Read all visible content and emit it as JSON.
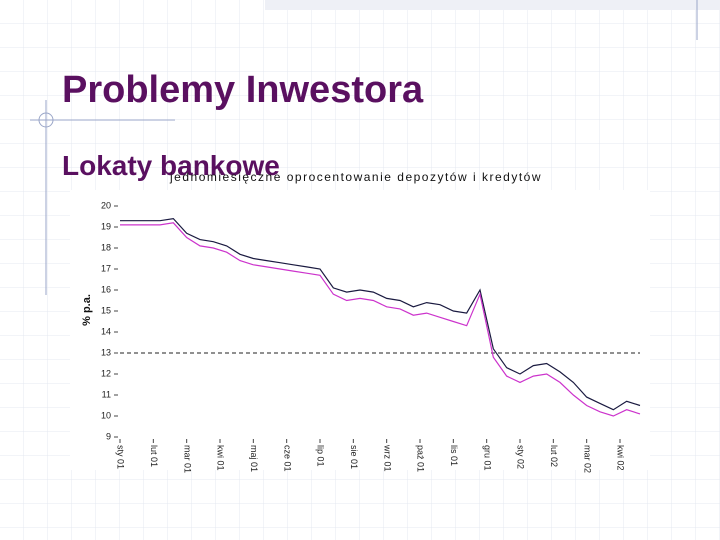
{
  "slide": {
    "title": "Problemy Inwestora",
    "subtitle": "Lokaty bankowe"
  },
  "chart_data": {
    "type": "line",
    "title": "jednomiesięczne oprocentowanie depozytów i kredytów",
    "y_label": "% p.a.",
    "x": [
      0,
      1,
      2,
      3,
      4,
      5,
      6,
      7,
      8,
      9,
      10,
      11,
      12,
      13,
      14,
      15,
      16,
      17,
      18,
      19,
      20,
      21,
      22,
      23,
      24,
      25,
      26,
      27,
      28,
      29,
      30,
      31,
      32,
      33,
      34,
      35,
      36,
      37,
      38,
      39
    ],
    "series": [
      {
        "color": "#1a1a40",
        "values": [
          19.3,
          19.3,
          19.3,
          19.3,
          19.4,
          18.7,
          18.4,
          18.3,
          18.1,
          17.7,
          17.5,
          17.4,
          17.3,
          17.2,
          17.1,
          17.0,
          16.1,
          15.9,
          16.0,
          15.9,
          15.6,
          15.5,
          15.2,
          15.4,
          15.3,
          15.0,
          14.9,
          16.0,
          13.2,
          12.3,
          12.0,
          12.4,
          12.5,
          12.1,
          11.6,
          10.9,
          10.6,
          10.3,
          10.7,
          10.5
        ]
      },
      {
        "color": "#cc33cc",
        "values": [
          19.1,
          19.1,
          19.1,
          19.1,
          19.2,
          18.5,
          18.1,
          18.0,
          17.8,
          17.4,
          17.2,
          17.1,
          17.0,
          16.9,
          16.8,
          16.7,
          15.8,
          15.5,
          15.6,
          15.5,
          15.2,
          15.1,
          14.8,
          14.9,
          14.7,
          14.5,
          14.3,
          15.8,
          12.8,
          11.9,
          11.6,
          11.9,
          12.0,
          11.6,
          11.0,
          10.5,
          10.2,
          10.0,
          10.3,
          10.1
        ]
      }
    ],
    "reference_line": 13,
    "xlim": [
      0,
      39
    ],
    "xticks": [
      {
        "value": 0,
        "label": "sty 01"
      },
      {
        "value": 2.5,
        "label": "lut 01"
      },
      {
        "value": 5,
        "label": "mar 01"
      },
      {
        "value": 7.5,
        "label": "kwi 01"
      },
      {
        "value": 10,
        "label": "maj 01"
      },
      {
        "value": 12.5,
        "label": "cze 01"
      },
      {
        "value": 15,
        "label": "lip 01"
      },
      {
        "value": 17.5,
        "label": "sie 01"
      },
      {
        "value": 20,
        "label": "wrz 01"
      },
      {
        "value": 22.5,
        "label": "paź 01"
      },
      {
        "value": 25,
        "label": "lis 01"
      },
      {
        "value": 27.5,
        "label": "gru 01"
      },
      {
        "value": 30,
        "label": "sty 02"
      },
      {
        "value": 32.5,
        "label": "lut 02"
      },
      {
        "value": 35,
        "label": "mar 02"
      },
      {
        "value": 37.5,
        "label": "kwi 02"
      }
    ],
    "ylim": [
      9,
      20
    ],
    "yticks": [
      9,
      10,
      11,
      12,
      13,
      14,
      15,
      16,
      17,
      18,
      19,
      20
    ]
  }
}
